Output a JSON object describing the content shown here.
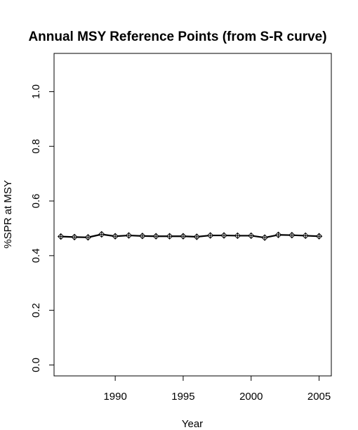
{
  "chart_data": {
    "type": "line",
    "title": "Annual MSY Reference Points (from S-R curve)",
    "xlabel": "Year",
    "ylabel": "%SPR at MSY",
    "xlim": [
      1985.5,
      2005.9
    ],
    "ylim": [
      -0.04,
      1.14
    ],
    "xticks": [
      1990,
      1995,
      2000,
      2005
    ],
    "yticks": [
      0.0,
      0.2,
      0.4,
      0.6,
      0.8,
      1.0
    ],
    "ytick_labels": [
      "0.0",
      "0.2",
      "0.4",
      "0.6",
      "0.8",
      "1.0"
    ],
    "grid": false,
    "series": [
      {
        "x": [
          1986,
          1987,
          1988,
          1989,
          1990,
          1991,
          1992,
          1993,
          1994,
          1995,
          1996,
          1997,
          1998,
          1999,
          2000,
          2001,
          2002,
          2003,
          2004,
          2005
        ],
        "values": [
          0.47,
          0.468,
          0.467,
          0.478,
          0.471,
          0.474,
          0.472,
          0.471,
          0.471,
          0.471,
          0.469,
          0.474,
          0.474,
          0.473,
          0.473,
          0.466,
          0.476,
          0.475,
          0.473,
          0.471
        ],
        "color": "#000000",
        "marker": "diamond-plus"
      }
    ]
  }
}
